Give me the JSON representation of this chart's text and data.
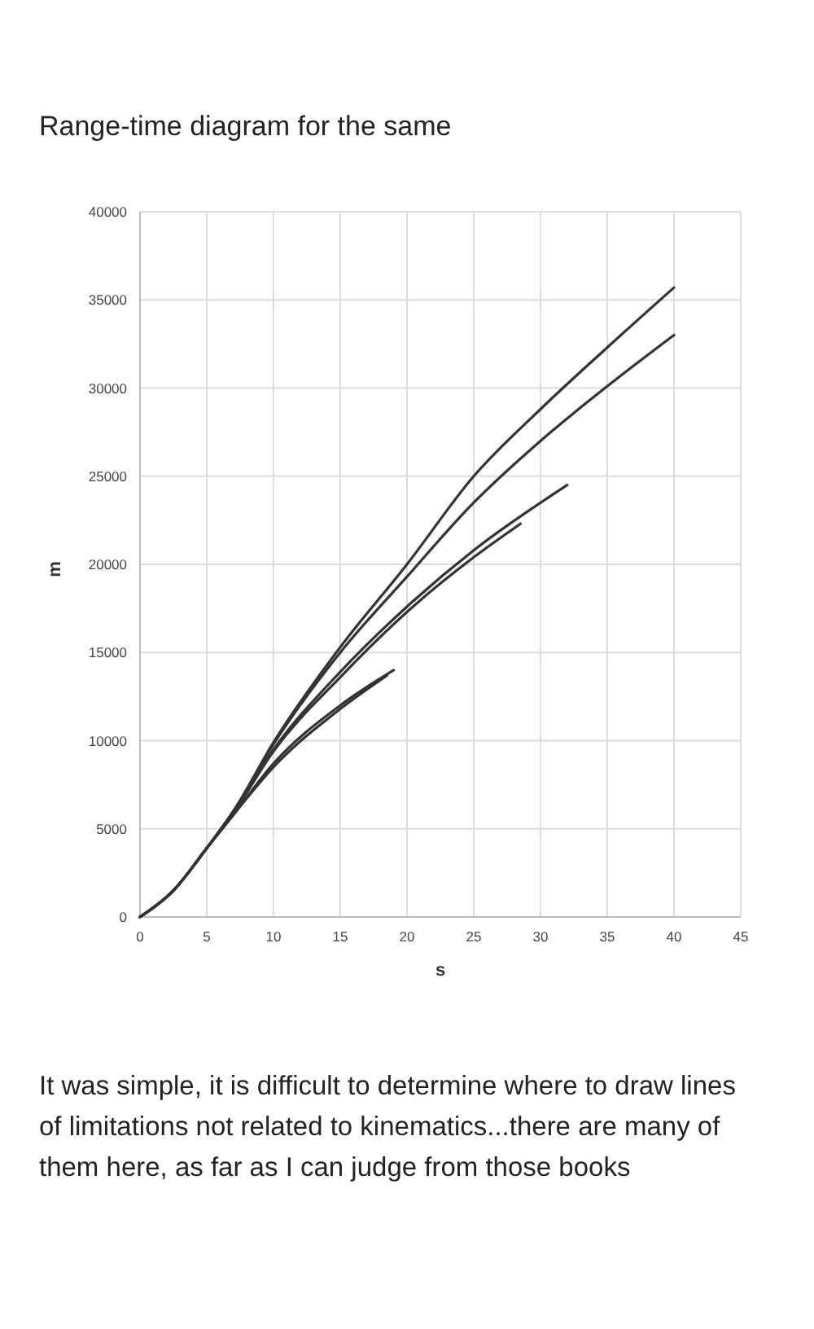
{
  "chart_data": {
    "type": "line",
    "title": "Range-time diagram for the same",
    "xlabel": "s",
    "ylabel": "m",
    "xlim": [
      0,
      45
    ],
    "xticks": [
      0,
      5,
      10,
      15,
      20,
      25,
      30,
      35,
      40,
      45
    ],
    "ylim": [
      0,
      40000
    ],
    "yticks": [
      0,
      5000,
      10000,
      15000,
      20000,
      25000,
      30000,
      35000,
      40000
    ],
    "grid": true,
    "series": [
      {
        "color": "#333333",
        "x": [
          0,
          2.5,
          5,
          7,
          10,
          15,
          20,
          25,
          30,
          35,
          40
        ],
        "values": [
          0,
          1500,
          3900,
          6000,
          9900,
          15300,
          20000,
          25000,
          28800,
          32300,
          35700
        ]
      },
      {
        "color": "#333333",
        "x": [
          0,
          2.5,
          5,
          7,
          10,
          15,
          20,
          25,
          30,
          35,
          40
        ],
        "values": [
          0,
          1500,
          3900,
          6000,
          9800,
          15000,
          19300,
          23500,
          27000,
          30100,
          33000
        ]
      },
      {
        "color": "#333333",
        "x": [
          0,
          2.5,
          5,
          7,
          10,
          15,
          20,
          25,
          32
        ],
        "values": [
          0,
          1500,
          3900,
          6000,
          9500,
          13900,
          17600,
          20800,
          24500
        ]
      },
      {
        "color": "#333333",
        "x": [
          0,
          2.5,
          5,
          7,
          10,
          15,
          20,
          25,
          28.5
        ],
        "values": [
          0,
          1500,
          3900,
          5900,
          9400,
          13600,
          17300,
          20400,
          22300
        ]
      },
      {
        "color": "#333333",
        "x": [
          0,
          2.5,
          5,
          7,
          10,
          15,
          19
        ],
        "values": [
          0,
          1500,
          3900,
          5800,
          8700,
          12000,
          14000
        ]
      },
      {
        "color": "#333333",
        "x": [
          0,
          2.5,
          5,
          7,
          10,
          15,
          18.5
        ],
        "values": [
          0,
          1500,
          3900,
          5800,
          8500,
          11800,
          13700
        ]
      }
    ],
    "annotations": [
      "It was simple, it is difficult to determine where to draw lines of limitations not related to kinematics...there are many of them here, as far as I can judge from those books"
    ]
  }
}
